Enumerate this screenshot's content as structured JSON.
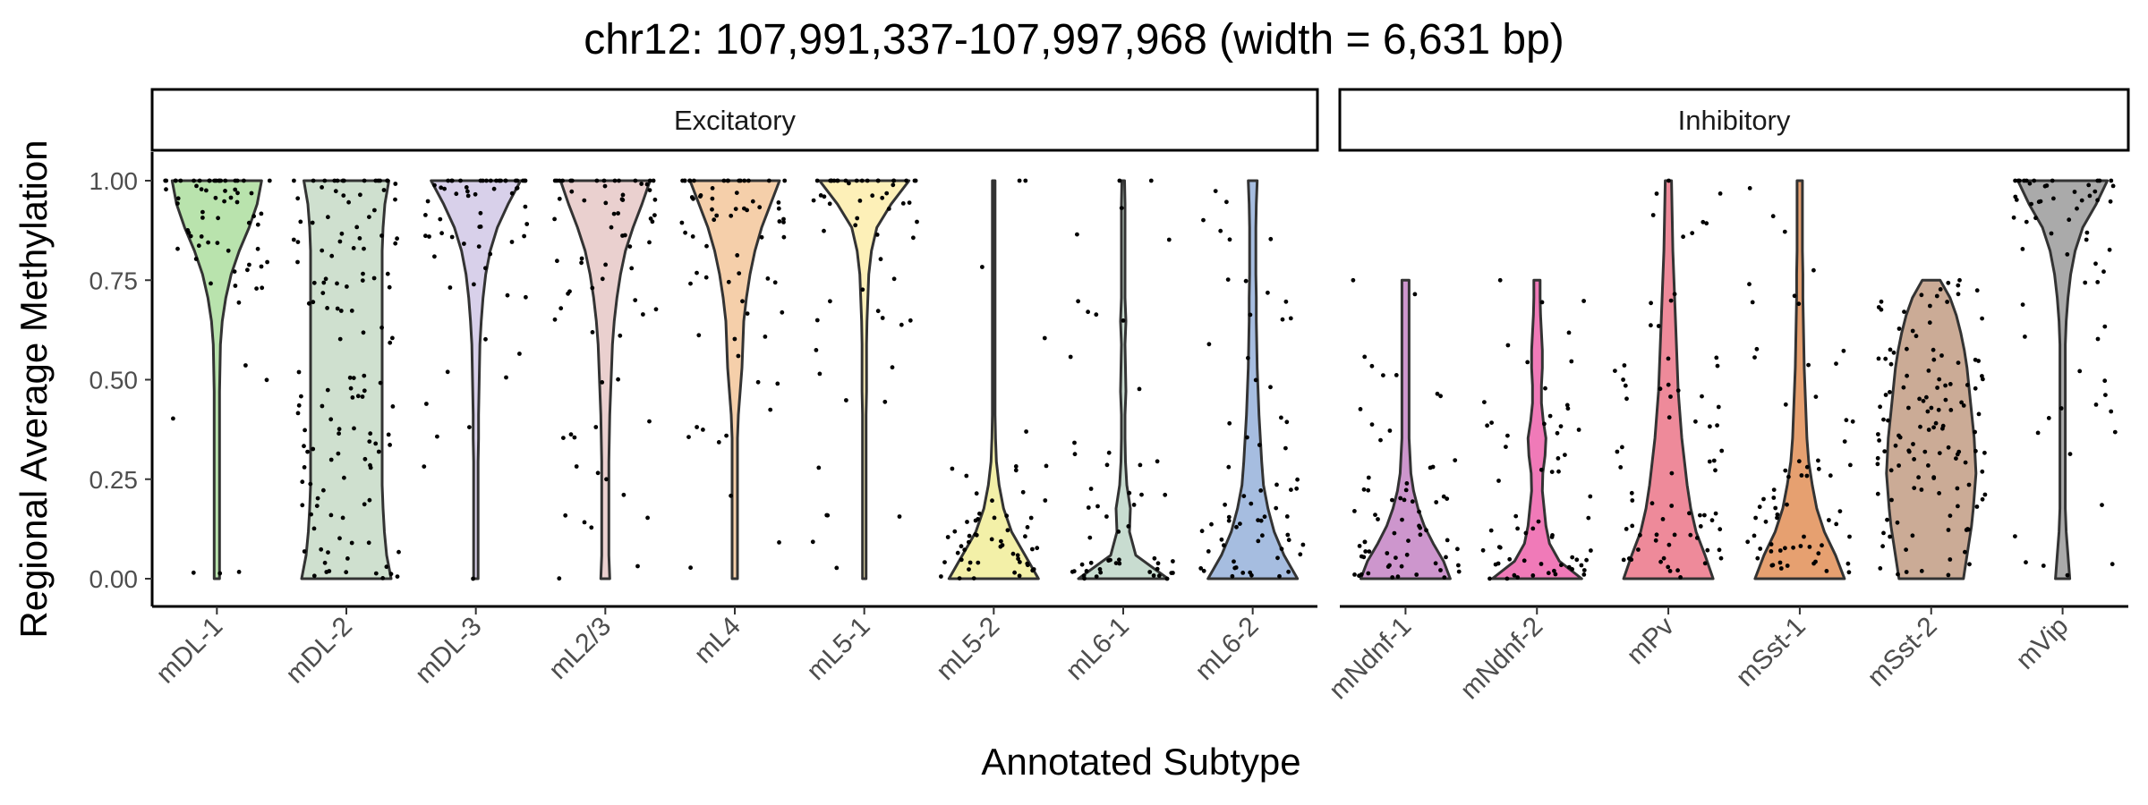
{
  "chart_data": {
    "type": "violin",
    "title": "chr12: 107,991,337-107,997,968 (width = 6,631 bp)",
    "xlabel": "Annotated Subtype",
    "ylabel": "Regional Average Methylation",
    "ylim": [
      0,
      1
    ],
    "y_ticks": [
      "0.00",
      "0.25",
      "0.50",
      "0.75",
      "1.00"
    ],
    "grid": false,
    "legend": "none",
    "panels": [
      {
        "name": "Excitatory",
        "categories": [
          {
            "label": "mDL-1",
            "color": "#b9e3ad",
            "min": 0.0,
            "max": 1.0,
            "shape": [
              0.06,
              0.06,
              0.06,
              0.06,
              0.06,
              0.06,
              0.06,
              0.06,
              0.06,
              0.07,
              0.08,
              0.12,
              0.2,
              0.32,
              0.5,
              0.72,
              0.9,
              1.0
            ]
          },
          {
            "label": "mDL-2",
            "color": "#cfe0cf",
            "min": 0.0,
            "max": 1.0,
            "shape": [
              1.0,
              0.9,
              0.85,
              0.82,
              0.8,
              0.8,
              0.8,
              0.8,
              0.8,
              0.8,
              0.8,
              0.8,
              0.8,
              0.8,
              0.8,
              0.82,
              0.86,
              0.95
            ]
          },
          {
            "label": "mDL-3",
            "color": "#d8d0ea",
            "min": 0.0,
            "max": 1.0,
            "shape": [
              0.05,
              0.05,
              0.05,
              0.05,
              0.05,
              0.05,
              0.06,
              0.06,
              0.07,
              0.08,
              0.09,
              0.12,
              0.16,
              0.22,
              0.32,
              0.48,
              0.72,
              1.0
            ]
          },
          {
            "label": "mL2/3",
            "color": "#ead0cf",
            "min": 0.0,
            "max": 1.0,
            "shape": [
              0.1,
              0.08,
              0.08,
              0.08,
              0.08,
              0.08,
              0.09,
              0.1,
              0.12,
              0.14,
              0.16,
              0.2,
              0.26,
              0.34,
              0.45,
              0.62,
              0.82,
              1.0
            ]
          },
          {
            "label": "mL4",
            "color": "#f5cfaa",
            "min": 0.0,
            "max": 1.0,
            "shape": [
              0.06,
              0.06,
              0.06,
              0.06,
              0.06,
              0.06,
              0.06,
              0.08,
              0.12,
              0.16,
              0.18,
              0.2,
              0.26,
              0.34,
              0.45,
              0.6,
              0.8,
              1.0
            ]
          },
          {
            "label": "mL5-1",
            "color": "#fdf0b8",
            "min": 0.0,
            "max": 1.0,
            "shape": [
              0.04,
              0.04,
              0.04,
              0.04,
              0.04,
              0.04,
              0.04,
              0.04,
              0.05,
              0.05,
              0.05,
              0.06,
              0.08,
              0.1,
              0.16,
              0.28,
              0.6,
              1.0
            ]
          },
          {
            "label": "mL5-2",
            "color": "#f3f0a8",
            "min": 0.0,
            "max": 1.0,
            "shape": [
              1.0,
              0.7,
              0.4,
              0.22,
              0.12,
              0.06,
              0.04,
              0.03,
              0.03,
              0.03,
              0.03,
              0.03,
              0.03,
              0.03,
              0.03,
              0.03,
              0.03,
              0.03
            ]
          },
          {
            "label": "mL6-1",
            "color": "#c8dcd0",
            "min": 0.0,
            "max": 1.0,
            "shape": [
              1.0,
              0.28,
              0.14,
              0.16,
              0.08,
              0.05,
              0.04,
              0.04,
              0.06,
              0.05,
              0.04,
              0.06,
              0.04,
              0.04,
              0.04,
              0.04,
              0.04,
              0.03
            ]
          },
          {
            "label": "mL6-2",
            "color": "#a6bde0",
            "min": 0.0,
            "max": 1.0,
            "shape": [
              1.0,
              0.7,
              0.48,
              0.34,
              0.24,
              0.2,
              0.17,
              0.14,
              0.12,
              0.1,
              0.09,
              0.08,
              0.08,
              0.07,
              0.07,
              0.07,
              0.08,
              0.1
            ]
          }
        ]
      },
      {
        "name": "Inhibitory",
        "categories": [
          {
            "label": "mNdnf-1",
            "color": "#cd96cd",
            "min": 0.0,
            "max": 0.75,
            "shape": [
              1.0,
              0.85,
              0.62,
              0.42,
              0.28,
              0.18,
              0.12,
              0.1,
              0.08,
              0.08,
              0.08,
              0.08,
              0.08,
              0.08,
              0.08,
              0.08,
              0.08,
              0.08
            ]
          },
          {
            "label": "mNdnf-2",
            "color": "#f07ab8",
            "min": 0.0,
            "max": 0.75,
            "shape": [
              1.0,
              0.5,
              0.28,
              0.2,
              0.16,
              0.12,
              0.13,
              0.18,
              0.2,
              0.14,
              0.1,
              0.1,
              0.12,
              0.12,
              0.1,
              0.08,
              0.07,
              0.07
            ]
          },
          {
            "label": "mPv",
            "color": "#ee8a9a",
            "min": 0.0,
            "max": 1.0,
            "shape": [
              1.0,
              0.82,
              0.62,
              0.5,
              0.42,
              0.36,
              0.3,
              0.26,
              0.22,
              0.2,
              0.18,
              0.16,
              0.14,
              0.12,
              0.1,
              0.09,
              0.08,
              0.07
            ]
          },
          {
            "label": "mSst-1",
            "color": "#e6a070",
            "min": 0.0,
            "max": 1.0,
            "shape": [
              1.0,
              0.8,
              0.55,
              0.38,
              0.28,
              0.2,
              0.16,
              0.14,
              0.12,
              0.1,
              0.09,
              0.08,
              0.07,
              0.07,
              0.06,
              0.06,
              0.06,
              0.06
            ]
          },
          {
            "label": "mSst-2",
            "color": "#cbab96",
            "min": 0.0,
            "max": 0.75,
            "shape": [
              0.72,
              0.78,
              0.84,
              0.9,
              0.94,
              0.97,
              1.0,
              0.98,
              0.96,
              0.92,
              0.88,
              0.84,
              0.8,
              0.74,
              0.66,
              0.56,
              0.42,
              0.2
            ]
          },
          {
            "label": "mVip",
            "color": "#aaaaaa",
            "min": 0.0,
            "max": 1.0,
            "shape": [
              0.16,
              0.12,
              0.08,
              0.06,
              0.06,
              0.06,
              0.06,
              0.06,
              0.06,
              0.06,
              0.06,
              0.08,
              0.12,
              0.18,
              0.28,
              0.45,
              0.75,
              1.0
            ]
          }
        ]
      }
    ]
  }
}
